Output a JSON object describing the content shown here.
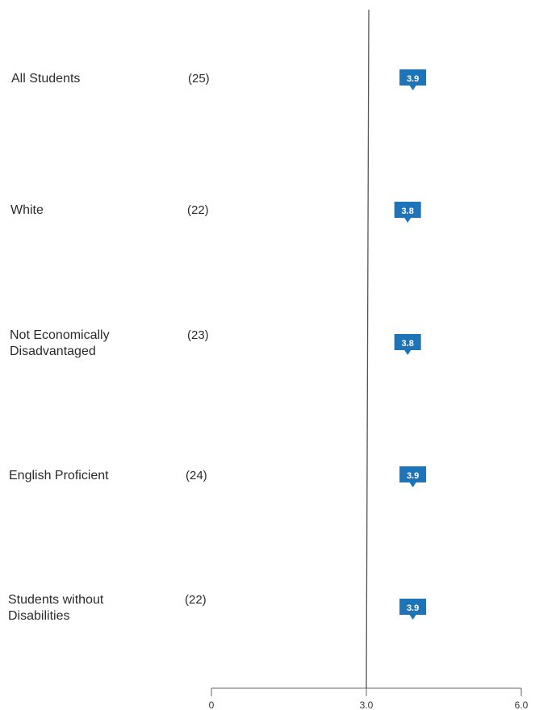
{
  "chart_data": {
    "type": "scatter",
    "categories": [
      "All Students",
      "White",
      "Not Economically Disadvantaged",
      "English Proficient",
      "Students without Disabilities"
    ],
    "category_labels": [
      "All Students",
      "White",
      "Not Economically\nDisadvantaged",
      "English Proficient",
      "Students without\nDisabilities"
    ],
    "counts": [
      "(25)",
      "(22)",
      "(23)",
      "(24)",
      "(22)"
    ],
    "values": [
      3.9,
      3.8,
      3.8,
      3.9,
      3.9
    ],
    "value_labels": [
      "3.9",
      "3.8",
      "3.8",
      "3.9",
      "3.9"
    ],
    "xlim": [
      0,
      6
    ],
    "x_ticks": [
      0,
      3,
      6
    ],
    "x_tick_labels": [
      "0",
      "3.0",
      "6.0"
    ],
    "reference_line": 3.0,
    "marker_color": "#1f73b7",
    "grid": false
  }
}
